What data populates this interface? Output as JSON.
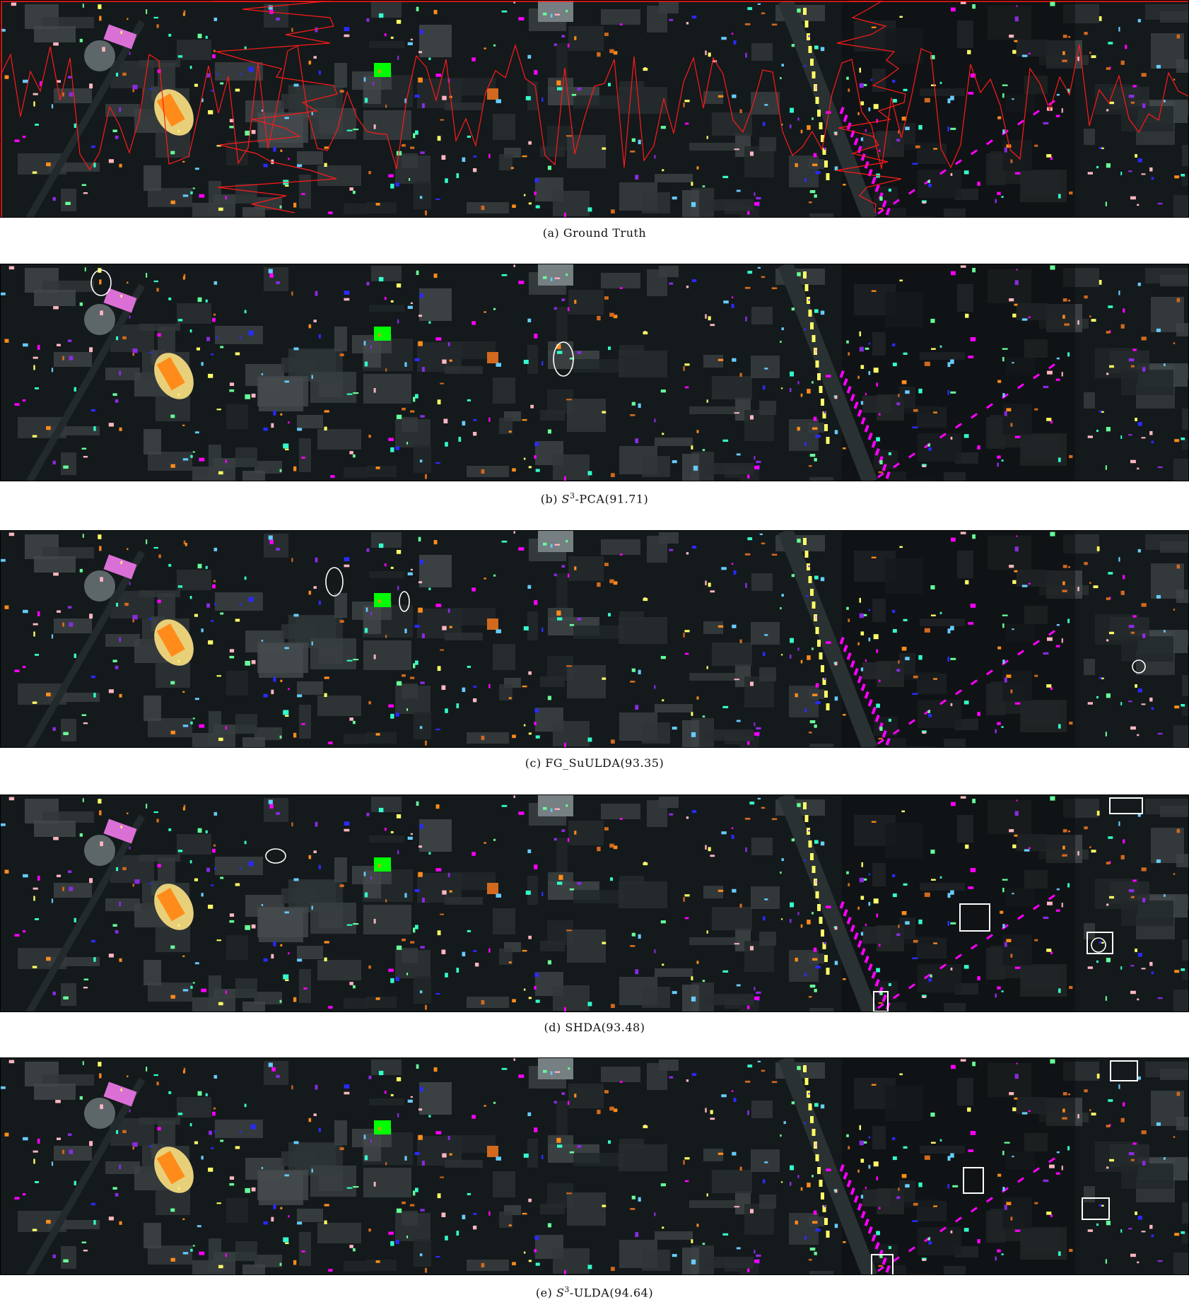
{
  "panels": [
    {
      "id": "a",
      "caption_prefix": "(a) ",
      "method": "Ground Truth",
      "sup": "",
      "score": ""
    },
    {
      "id": "b",
      "caption_prefix": "(b) ",
      "method": "S",
      "sup": "3",
      "method_suffix": "-PCA",
      "score": "(91.71)"
    },
    {
      "id": "c",
      "caption_prefix": "(c) ",
      "method": "FG_SuULDA",
      "sup": "",
      "method_suffix": "",
      "score": "(93.35)"
    },
    {
      "id": "d",
      "caption_prefix": "(d) ",
      "method": "SHDA",
      "sup": "",
      "method_suffix": "",
      "score": "(93.48)"
    },
    {
      "id": "e",
      "caption_prefix": "(e) ",
      "method": "S",
      "sup": "3",
      "method_suffix": "-ULDA",
      "score": "(94.64)"
    }
  ],
  "class_colors": [
    "#ffff66",
    "#2a2aff",
    "#8a2be2",
    "#ff00ff",
    "#66ff99",
    "#33ffcc",
    "#ff8c1a",
    "#d2691e",
    "#66ccff",
    "#ffb6c1",
    "#00ff00",
    "#e8d07a",
    "#da70d6"
  ],
  "boundary_color": "#ff1a1a",
  "highlight_color": "#ffffff"
}
